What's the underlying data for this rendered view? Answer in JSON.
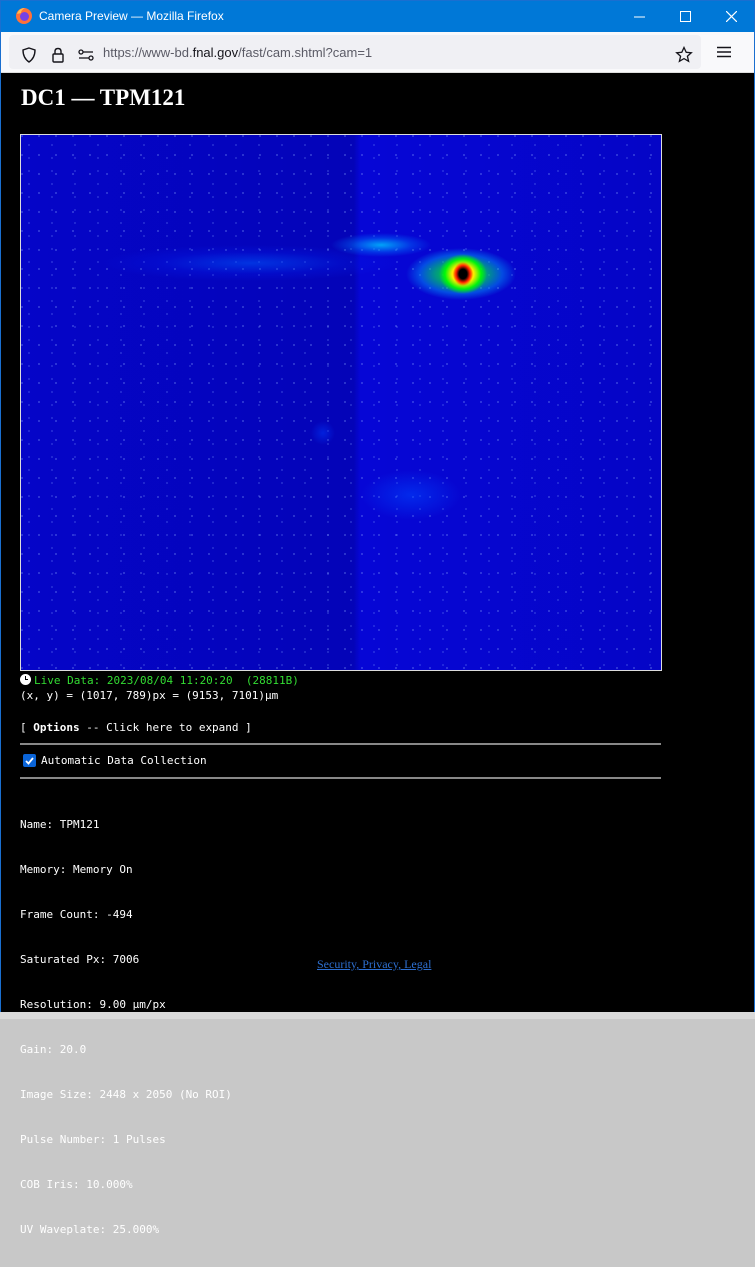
{
  "window": {
    "title": "Camera Preview — Mozilla Firefox"
  },
  "navbar": {
    "url_prefix": "https://www-bd.",
    "url_domain": "fnal.gov",
    "url_path": "/fast/cam.shtml?cam=1"
  },
  "page": {
    "heading": "DC1 — TPM121",
    "live_label": "Live Data: 2023/08/04 11:20:20  (28811B)",
    "coords": "(x, y) = (1017, 789)px = (9153, 7101)µm",
    "options_open": "[ ",
    "options_bold": "Options",
    "options_rest": " -- Click here to expand ]",
    "auto_label": "Automatic Data Collection",
    "auto_checked": true,
    "info": [
      "Name: TPM121",
      "Memory: Memory On",
      "Frame Count: -494",
      "Saturated Px: 7006",
      "Resolution: 9.00 µm/px",
      "Gain: 20.0",
      "Image Size: 2448 x 2050 (No ROI)",
      "Pulse Number: 1 Pulses",
      "COB Iris: 10.000%",
      "UV Waveplate: 25.000%"
    ],
    "footer_link": "Security, Privacy, Legal"
  }
}
